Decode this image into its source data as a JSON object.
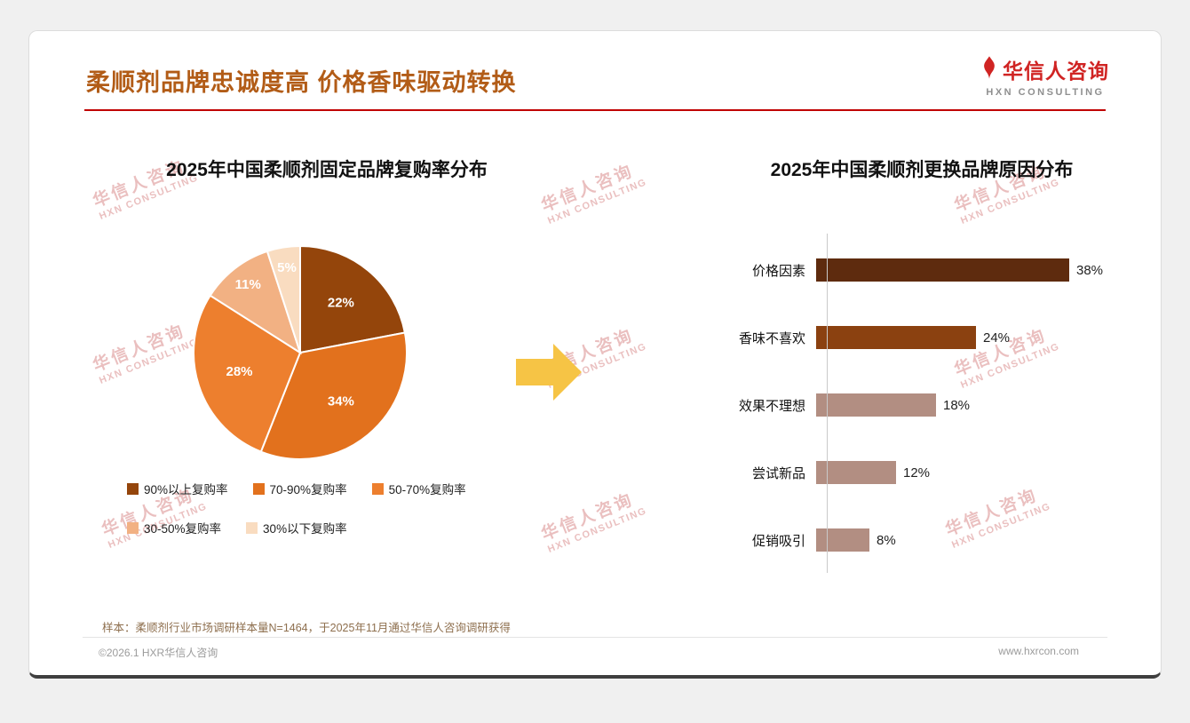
{
  "page": {
    "title": "柔顺剂品牌忠诚度高 价格香味驱动转换",
    "logo": {
      "name": "华信人咨询",
      "sub": "HXN CONSULTING"
    },
    "watermark": {
      "line1": "华信人咨询",
      "line2": "HXN CONSULTING"
    },
    "footnote": "样本：柔顺剂行业市场调研样本量N=1464，于2025年11月通过华信人咨询调研获得",
    "footer": {
      "left": "©2026.1 HXR华信人咨询",
      "right": "www.hxrcon.com"
    }
  },
  "chart_data": [
    {
      "type": "pie",
      "title": "2025年中国柔顺剂固定品牌复购率分布",
      "labels": [
        "90%以上复购率",
        "70-90%复购率",
        "50-70%复购率",
        "30-50%复购率",
        "30%以下复购率"
      ],
      "values": [
        22,
        34,
        28,
        11,
        5
      ],
      "value_labels": [
        "22%",
        "34%",
        "28%",
        "11%",
        "5%"
      ],
      "colors": [
        "#94450B",
        "#E2711D",
        "#ED7F2E",
        "#F2B183",
        "#F9DCC0"
      ],
      "start_angle_deg": 0,
      "direction": "clockwise",
      "legend_position": "bottom"
    },
    {
      "type": "bar",
      "orientation": "horizontal",
      "title": "2025年中国柔顺剂更换品牌原因分布",
      "categories": [
        "价格因素",
        "香味不喜欢",
        "效果不理想",
        "尝试新品",
        "促销吸引"
      ],
      "values": [
        38,
        24,
        18,
        12,
        8
      ],
      "value_labels": [
        "38%",
        "24%",
        "18%",
        "12%",
        "8%"
      ],
      "colors": [
        "#5E2B0E",
        "#8B4110",
        "#B28E82",
        "#B28E82",
        "#B28E82"
      ],
      "xlim": [
        0,
        40
      ],
      "grid": false
    }
  ],
  "arrow_color": "#F6C445",
  "accent_colors": {
    "title": "#B25C17",
    "rule": "#C00000",
    "logo_red": "#D02423"
  }
}
